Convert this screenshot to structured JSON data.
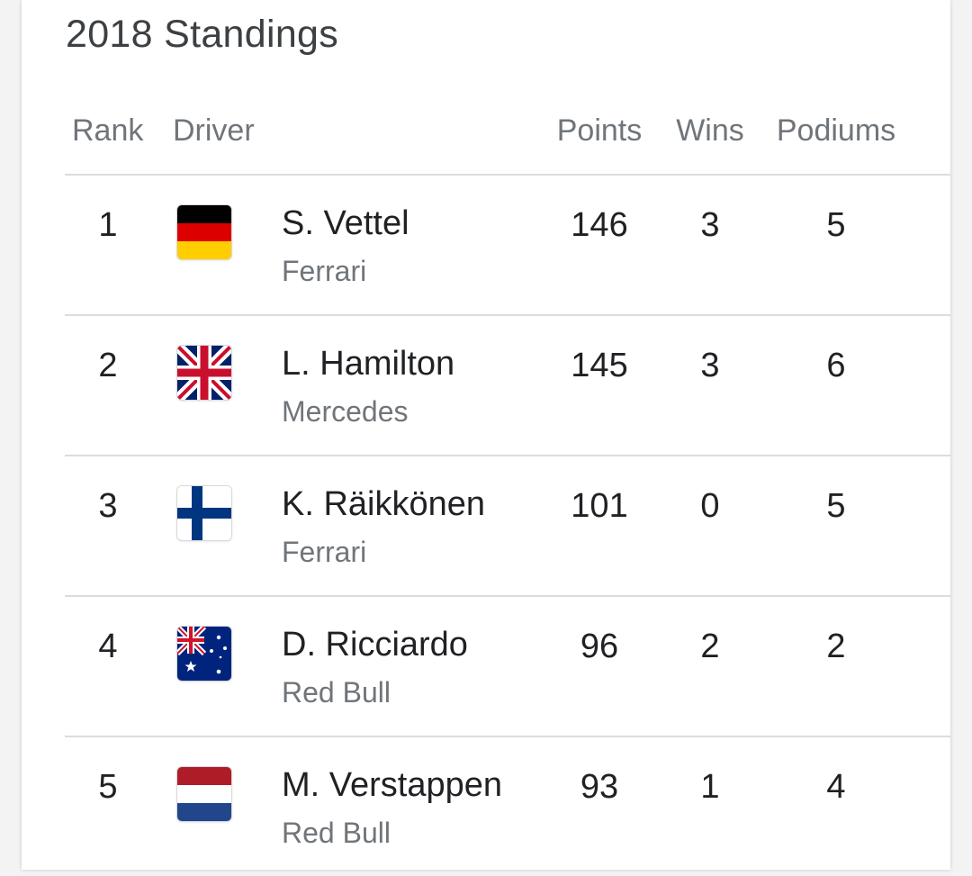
{
  "title": "2018 Standings",
  "columns": {
    "rank": "Rank",
    "driver": "Driver",
    "points": "Points",
    "wins": "Wins",
    "podiums": "Podiums"
  },
  "rows": [
    {
      "rank": "1",
      "flag": "germany-flag-icon",
      "driver": "S. Vettel",
      "team": "Ferrari",
      "points": "146",
      "wins": "3",
      "podiums": "5"
    },
    {
      "rank": "2",
      "flag": "united-kingdom-flag-icon",
      "driver": "L. Hamilton",
      "team": "Mercedes",
      "points": "145",
      "wins": "3",
      "podiums": "6"
    },
    {
      "rank": "3",
      "flag": "finland-flag-icon",
      "driver": "K. Räikkönen",
      "team": "Ferrari",
      "points": "101",
      "wins": "0",
      "podiums": "5"
    },
    {
      "rank": "4",
      "flag": "australia-flag-icon",
      "driver": "D. Ricciardo",
      "team": "Red Bull",
      "points": "96",
      "wins": "2",
      "podiums": "2"
    },
    {
      "rank": "5",
      "flag": "netherlands-flag-icon",
      "driver": "M. Verstappen",
      "team": "Red Bull",
      "points": "93",
      "wins": "1",
      "podiums": "4"
    }
  ],
  "colors": {
    "text_primary": "#202124",
    "text_secondary": "#70757a",
    "divider": "#dadce0"
  }
}
